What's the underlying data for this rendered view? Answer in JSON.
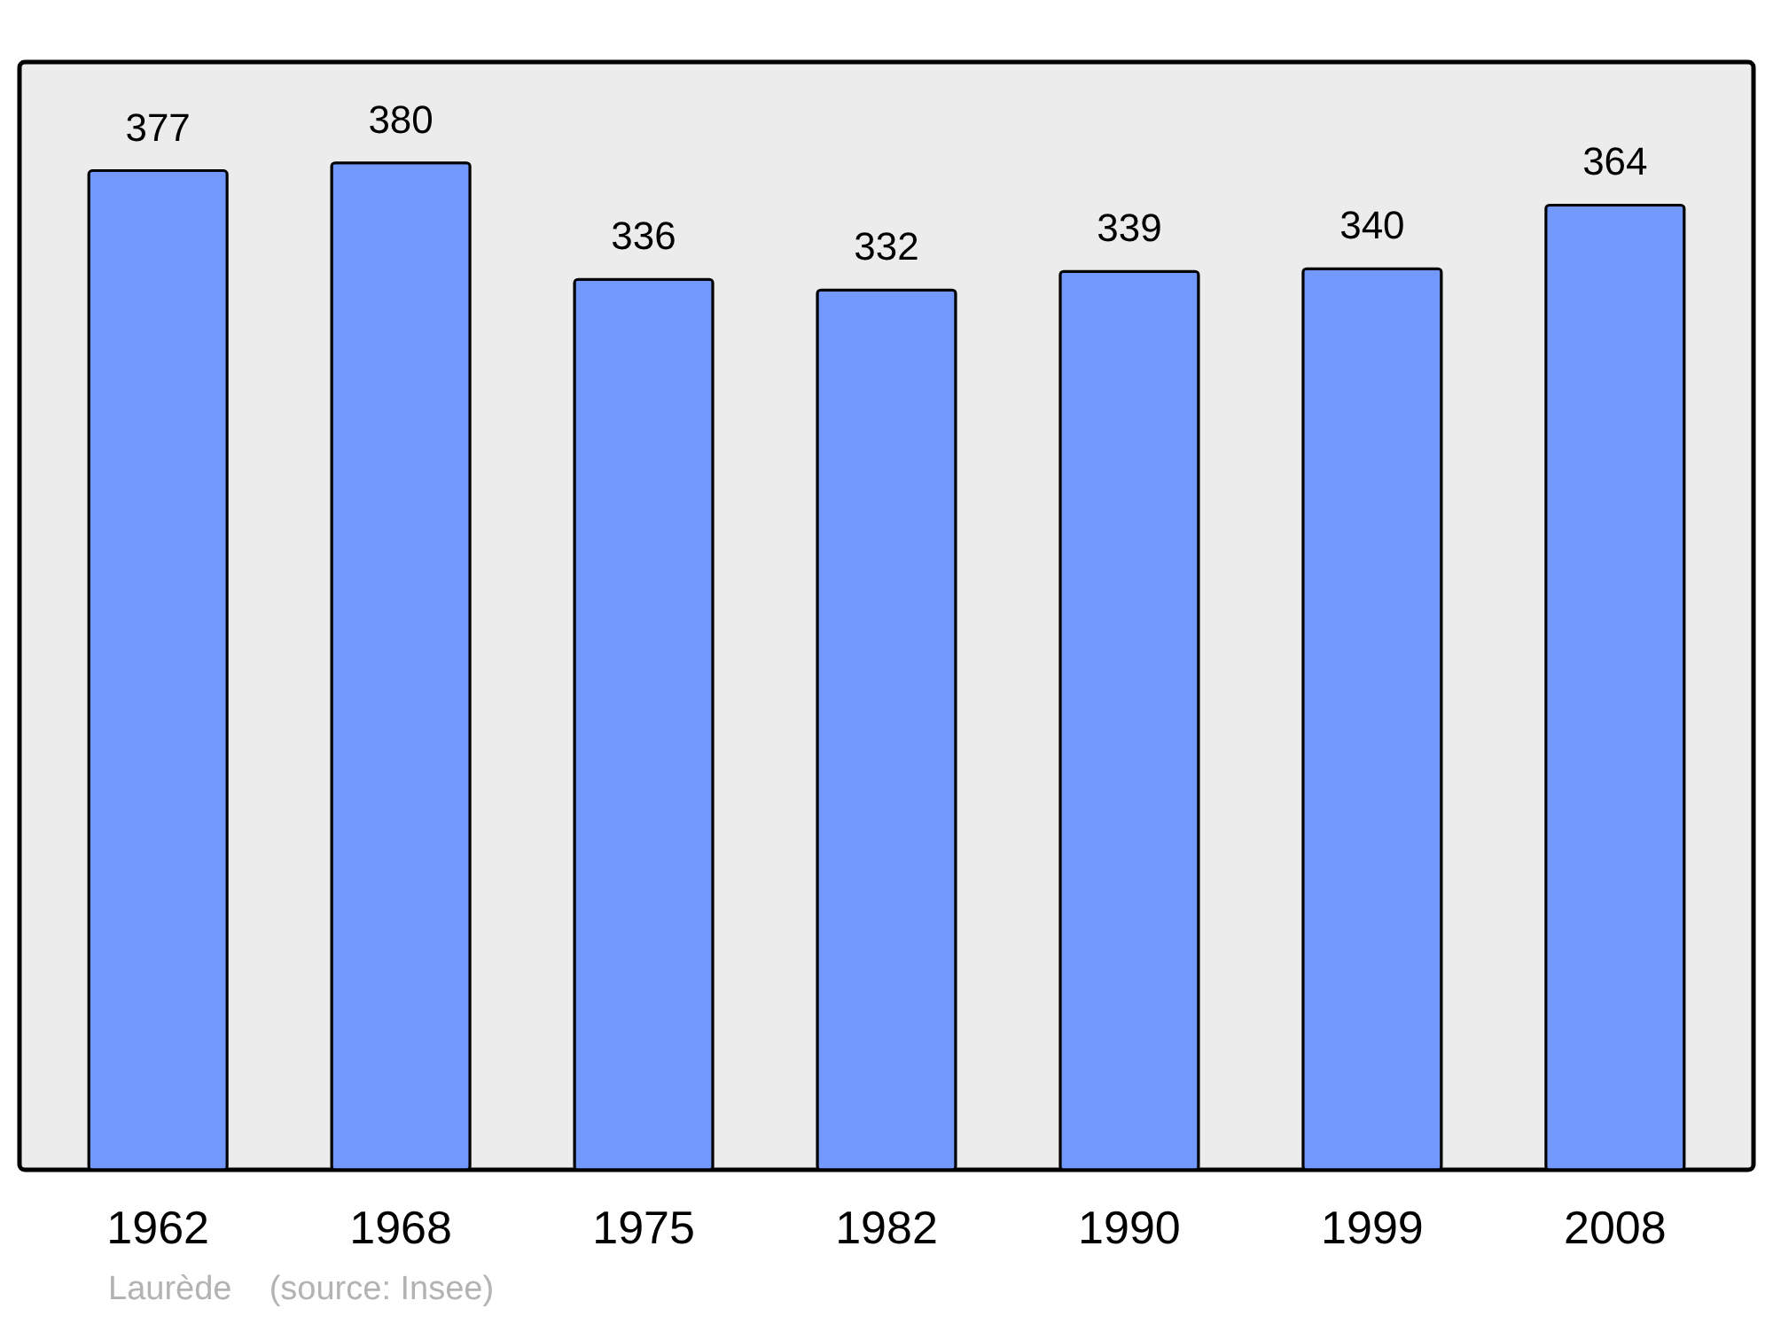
{
  "chart_data": {
    "type": "bar",
    "categories": [
      "1962",
      "1968",
      "1975",
      "1982",
      "1990",
      "1999",
      "2008"
    ],
    "values": [
      377,
      380,
      336,
      332,
      339,
      340,
      364
    ],
    "color": "#7399ff",
    "ylim": [
      0,
      418
    ],
    "data_labels": true,
    "grid": false,
    "annotations": [
      "Laurède    (source: Insee)"
    ]
  }
}
